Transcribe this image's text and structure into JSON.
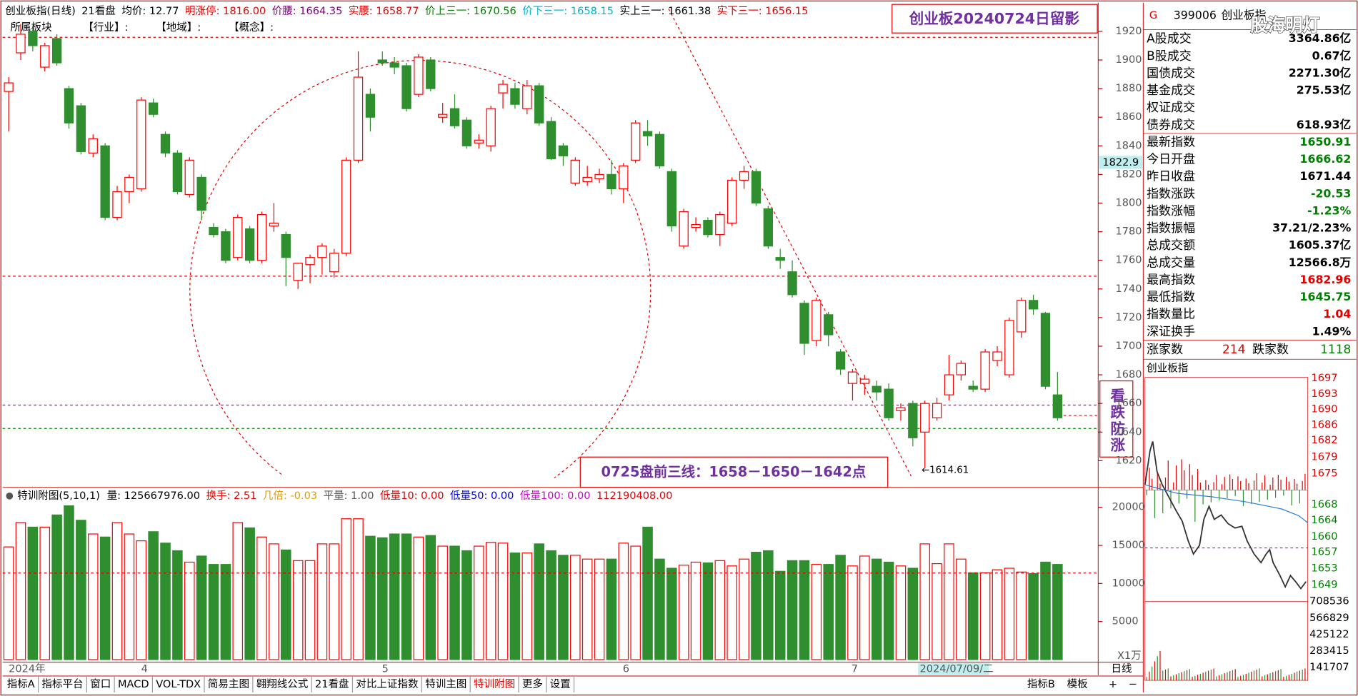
{
  "header": [
    {
      "text": "创业板指(日线)",
      "color": "#000"
    },
    {
      "text": "21看盘",
      "color": "#000"
    },
    {
      "text": "均价: 12.77",
      "color": "#000"
    },
    {
      "text": "明涨停: 1816.00",
      "color": "#e00000"
    },
    {
      "text": "价腰: 1664.35",
      "color": "#800080"
    },
    {
      "text": "实腰: 1658.77",
      "color": "#e00000"
    },
    {
      "text": "价上三一: 1670.56",
      "color": "#008000"
    },
    {
      "text": "价下三一: 1658.15",
      "color": "#00b0d0"
    },
    {
      "text": "实上三一: 1661.38",
      "color": "#000"
    },
    {
      "text": "实下三一: 1656.15",
      "color": "#e00000"
    }
  ],
  "subheader": [
    "所属板块",
    "【行业】:",
    "【地域】:",
    "【概念】:"
  ],
  "annotations": {
    "title": "创业板20240724日留影",
    "lines": "0725盘前三线：1658－1650－1642点",
    "vertical": "看跌防涨",
    "low_label": "←1614.61",
    "price_marker": "1822.9"
  },
  "chart": {
    "type": "candlestick",
    "ylim": [
      1602,
      1937
    ],
    "yticks": [
      1620,
      1640,
      1660,
      1680,
      1700,
      1720,
      1740,
      1760,
      1780,
      1800,
      1820,
      1840,
      1860,
      1880,
      1900,
      1920
    ],
    "up_color": "#ff0000",
    "down_color": "#2f8f2f",
    "candles": [
      [
        1878,
        1888,
        1850,
        1884
      ],
      [
        1905,
        1925,
        1900,
        1918
      ],
      [
        1920,
        1924,
        1906,
        1910
      ],
      [
        1895,
        1912,
        1892,
        1910
      ],
      [
        1915,
        1918,
        1896,
        1898
      ],
      [
        1880,
        1882,
        1852,
        1856
      ],
      [
        1868,
        1870,
        1834,
        1836
      ],
      [
        1835,
        1848,
        1832,
        1845
      ],
      [
        1840,
        1842,
        1788,
        1790
      ],
      [
        1790,
        1812,
        1788,
        1808
      ],
      [
        1808,
        1820,
        1800,
        1818
      ],
      [
        1810,
        1874,
        1808,
        1872
      ],
      [
        1870,
        1873,
        1860,
        1862
      ],
      [
        1848,
        1850,
        1832,
        1835
      ],
      [
        1835,
        1837,
        1806,
        1808
      ],
      [
        1806,
        1832,
        1804,
        1830
      ],
      [
        1818,
        1820,
        1788,
        1795
      ],
      [
        1783,
        1786,
        1776,
        1778
      ],
      [
        1780,
        1782,
        1758,
        1760
      ],
      [
        1762,
        1792,
        1760,
        1790
      ],
      [
        1782,
        1784,
        1758,
        1760
      ],
      [
        1760,
        1794,
        1758,
        1792
      ],
      [
        1784,
        1800,
        1780,
        1786
      ],
      [
        1778,
        1780,
        1742,
        1762
      ],
      [
        1746,
        1758,
        1740,
        1758
      ],
      [
        1757,
        1764,
        1744,
        1762
      ],
      [
        1762,
        1772,
        1750,
        1770
      ],
      [
        1752,
        1768,
        1748,
        1765
      ],
      [
        1765,
        1832,
        1763,
        1830
      ],
      [
        1830,
        1906,
        1828,
        1888
      ],
      [
        1876,
        1880,
        1850,
        1860
      ],
      [
        1900,
        1906,
        1896,
        1898
      ],
      [
        1898,
        1902,
        1890,
        1895
      ],
      [
        1896,
        1898,
        1864,
        1866
      ],
      [
        1876,
        1904,
        1874,
        1902
      ],
      [
        1900,
        1902,
        1878,
        1880
      ],
      [
        1860,
        1870,
        1856,
        1862
      ],
      [
        1866,
        1876,
        1852,
        1854
      ],
      [
        1858,
        1860,
        1838,
        1840
      ],
      [
        1842,
        1848,
        1838,
        1844
      ],
      [
        1840,
        1868,
        1836,
        1866
      ],
      [
        1877,
        1886,
        1866,
        1883
      ],
      [
        1880,
        1884,
        1866,
        1869
      ],
      [
        1866,
        1886,
        1862,
        1882
      ],
      [
        1882,
        1884,
        1854,
        1856
      ],
      [
        1857,
        1860,
        1830,
        1831
      ],
      [
        1840,
        1842,
        1826,
        1833
      ],
      [
        1814,
        1832,
        1812,
        1830
      ],
      [
        1815,
        1826,
        1812,
        1818
      ],
      [
        1817,
        1824,
        1814,
        1820
      ],
      [
        1820,
        1830,
        1806,
        1810
      ],
      [
        1810,
        1828,
        1800,
        1826
      ],
      [
        1830,
        1858,
        1828,
        1856
      ],
      [
        1850,
        1858,
        1840,
        1847
      ],
      [
        1848,
        1850,
        1824,
        1826
      ],
      [
        1822,
        1824,
        1780,
        1784
      ],
      [
        1770,
        1796,
        1768,
        1794
      ],
      [
        1783,
        1790,
        1780,
        1785
      ],
      [
        1788,
        1790,
        1776,
        1778
      ],
      [
        1778,
        1794,
        1770,
        1792
      ],
      [
        1786,
        1818,
        1784,
        1816
      ],
      [
        1816,
        1826,
        1810,
        1822
      ],
      [
        1822,
        1824,
        1798,
        1800
      ],
      [
        1796,
        1798,
        1768,
        1770
      ],
      [
        1762,
        1768,
        1754,
        1760
      ],
      [
        1752,
        1760,
        1734,
        1736
      ],
      [
        1730,
        1732,
        1694,
        1702
      ],
      [
        1704,
        1734,
        1700,
        1732
      ],
      [
        1722,
        1724,
        1700,
        1708
      ],
      [
        1696,
        1698,
        1680,
        1684
      ],
      [
        1674,
        1684,
        1662,
        1682
      ],
      [
        1674,
        1680,
        1666,
        1677
      ],
      [
        1672,
        1676,
        1662,
        1668
      ],
      [
        1670,
        1674,
        1648,
        1650
      ],
      [
        1655,
        1660,
        1648,
        1657
      ],
      [
        1660,
        1662,
        1630,
        1636
      ],
      [
        1640,
        1662,
        1614.61,
        1660
      ],
      [
        1650,
        1664,
        1648,
        1660
      ],
      [
        1666,
        1694,
        1662,
        1680
      ],
      [
        1680,
        1690,
        1676,
        1688
      ],
      [
        1672,
        1676,
        1668,
        1670
      ],
      [
        1670,
        1698,
        1668,
        1696
      ],
      [
        1690,
        1700,
        1686,
        1696
      ],
      [
        1680,
        1720,
        1678,
        1718
      ],
      [
        1710,
        1734,
        1706,
        1732
      ],
      [
        1732,
        1736,
        1722,
        1726
      ],
      [
        1723,
        1724,
        1670,
        1672
      ],
      [
        1666,
        1682,
        1648,
        1650
      ]
    ]
  },
  "volume": {
    "type": "bar",
    "title": "特训附图(5,10,1)",
    "legend": [
      {
        "text": "量: 125667976.00",
        "color": "#000"
      },
      {
        "text": "换手: 2.51",
        "color": "#e00000"
      },
      {
        "text": "几倍: -0.03",
        "color": "#e0a000"
      },
      {
        "text": "平量: 1.00",
        "color": "#555"
      },
      {
        "text": "低量10: 0.00",
        "color": "#e00000"
      },
      {
        "text": "低量50: 0.00",
        "color": "#0000e0"
      },
      {
        "text": "低量100: 0.00",
        "color": "#d000d0"
      },
      {
        "text": "112190408.00",
        "color": "#e00000"
      }
    ],
    "ylim": [
      0,
      22400
    ],
    "yticks": [
      5000,
      10000,
      15000,
      20000
    ],
    "unit_label": "X1万",
    "values": [
      14800,
      18000,
      17400,
      17400,
      19000,
      20200,
      18300,
      16500,
      16100,
      18000,
      16500,
      15600,
      16800,
      15300,
      14300,
      12800,
      13600,
      12500,
      12500,
      18000,
      17300,
      16100,
      15200,
      14400,
      13000,
      13000,
      15200,
      15200,
      18500,
      18500,
      16200,
      16000,
      16500,
      16500,
      16100,
      16300,
      14900,
      14900,
      14300,
      14900,
      15400,
      15300,
      14000,
      14000,
      15200,
      14300,
      13700,
      13700,
      13200,
      13200,
      13200,
      15300,
      14900,
      17400,
      13200,
      12000,
      12400,
      12800,
      12700,
      13000,
      12300,
      13200,
      14100,
      14300,
      11600,
      13000,
      13000,
      12500,
      12500,
      13700,
      12300,
      13600,
      13200,
      12800,
      12300,
      12000,
      15200,
      12600,
      15200,
      13200,
      11400,
      11400,
      11800,
      12000,
      11500,
      11300,
      12800,
      12500
    ]
  },
  "date_axis": [
    "2024年",
    "4",
    "5",
    "6",
    "7",
    "2024/07/09/二"
  ],
  "tabs": [
    "指标A",
    "指标平台",
    "窗口",
    "MACD",
    "VOL-TDX",
    "简易主图",
    "翱翔线公式",
    "21看盘",
    "对比上证指数",
    "特训主图",
    "特训附图",
    "更多",
    "设置"
  ],
  "active_tab": "特训附图",
  "right_tabs": [
    "指标B",
    "模板"
  ],
  "side_tabs": [
    "日线",
    "+",
    "−"
  ],
  "panel": {
    "flag": "G",
    "code": "399006",
    "name": "创业板指",
    "watermark": "股海明灯",
    "rows": [
      {
        "label": "A股成交",
        "value": "3364.86亿",
        "color": "#000"
      },
      {
        "label": "B股成交",
        "value": "0.67亿",
        "color": "#000"
      },
      {
        "label": "国债成交",
        "value": "2271.30亿",
        "color": "#000"
      },
      {
        "label": "基金成交",
        "value": "275.53亿",
        "color": "#000"
      },
      {
        "label": "权证成交",
        "color": "#000"
      },
      {
        "label": "债券成交",
        "value": "618.93亿",
        "color": "#000"
      },
      {
        "label": "最新指数",
        "value": "1650.91",
        "color": "#008000"
      },
      {
        "label": "今日开盘",
        "value": "1666.62",
        "color": "#008000"
      },
      {
        "label": "昨日收盘",
        "value": "1671.44",
        "color": "#000"
      },
      {
        "label": "指数涨跌",
        "value": "-20.53",
        "color": "#008000"
      },
      {
        "label": "指数涨幅",
        "value": "-1.23%",
        "color": "#008000"
      },
      {
        "label": "指数振幅",
        "value": "37.21/2.23%",
        "color": "#000"
      },
      {
        "label": "总成交额",
        "value": "1605.37亿",
        "color": "#000"
      },
      {
        "label": "总成交量",
        "value": "12566.8万",
        "color": "#000"
      },
      {
        "label": "最高指数",
        "value": "1682.96",
        "color": "#e00000"
      },
      {
        "label": "最低指数",
        "value": "1645.75",
        "color": "#008000"
      },
      {
        "label": "指数量比",
        "value": "1.04",
        "color": "#e00000"
      },
      {
        "label": "深证换手",
        "value": "1.49%",
        "color": "#000"
      }
    ],
    "breadth": {
      "up_label": "涨家数",
      "up": "214",
      "down_label": "跌家数",
      "down": "1118"
    },
    "mini_title": "创业板指",
    "mini_upper": [
      "1697",
      "1693",
      "1690",
      "1686",
      "1682",
      "1679",
      "1675"
    ],
    "mini_lower": [
      "1668",
      "1664",
      "1660",
      "1657",
      "1653",
      "1649"
    ],
    "mini_volume": [
      "708536",
      "566829",
      "425122",
      "283415",
      "141707"
    ]
  }
}
